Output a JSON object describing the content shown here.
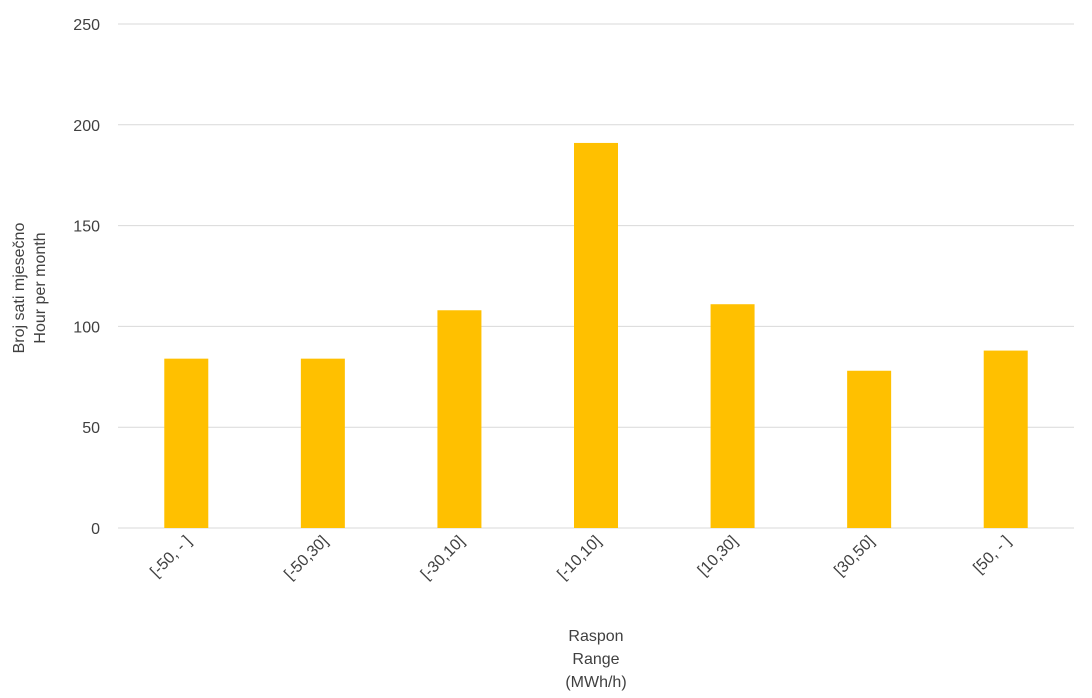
{
  "chart_data": {
    "type": "bar",
    "categories": [
      "[-50, - ]",
      "[-50,30]",
      "[-30,10]",
      "[-10,10]",
      "[10,30]",
      "[30,50]",
      "[50, - ]"
    ],
    "values": [
      84,
      84,
      108,
      191,
      111,
      78,
      88
    ],
    "ylim": [
      0,
      250
    ],
    "yticks": [
      0,
      50,
      100,
      150,
      200,
      250
    ],
    "ylabel": [
      "Broj sati mjesečno",
      "Hour per month"
    ],
    "xlabel": [
      "Raspon",
      "Range",
      "(MWh/h)"
    ],
    "grid": "horizontal",
    "legend": "none",
    "bar_color": "#FFC000"
  }
}
